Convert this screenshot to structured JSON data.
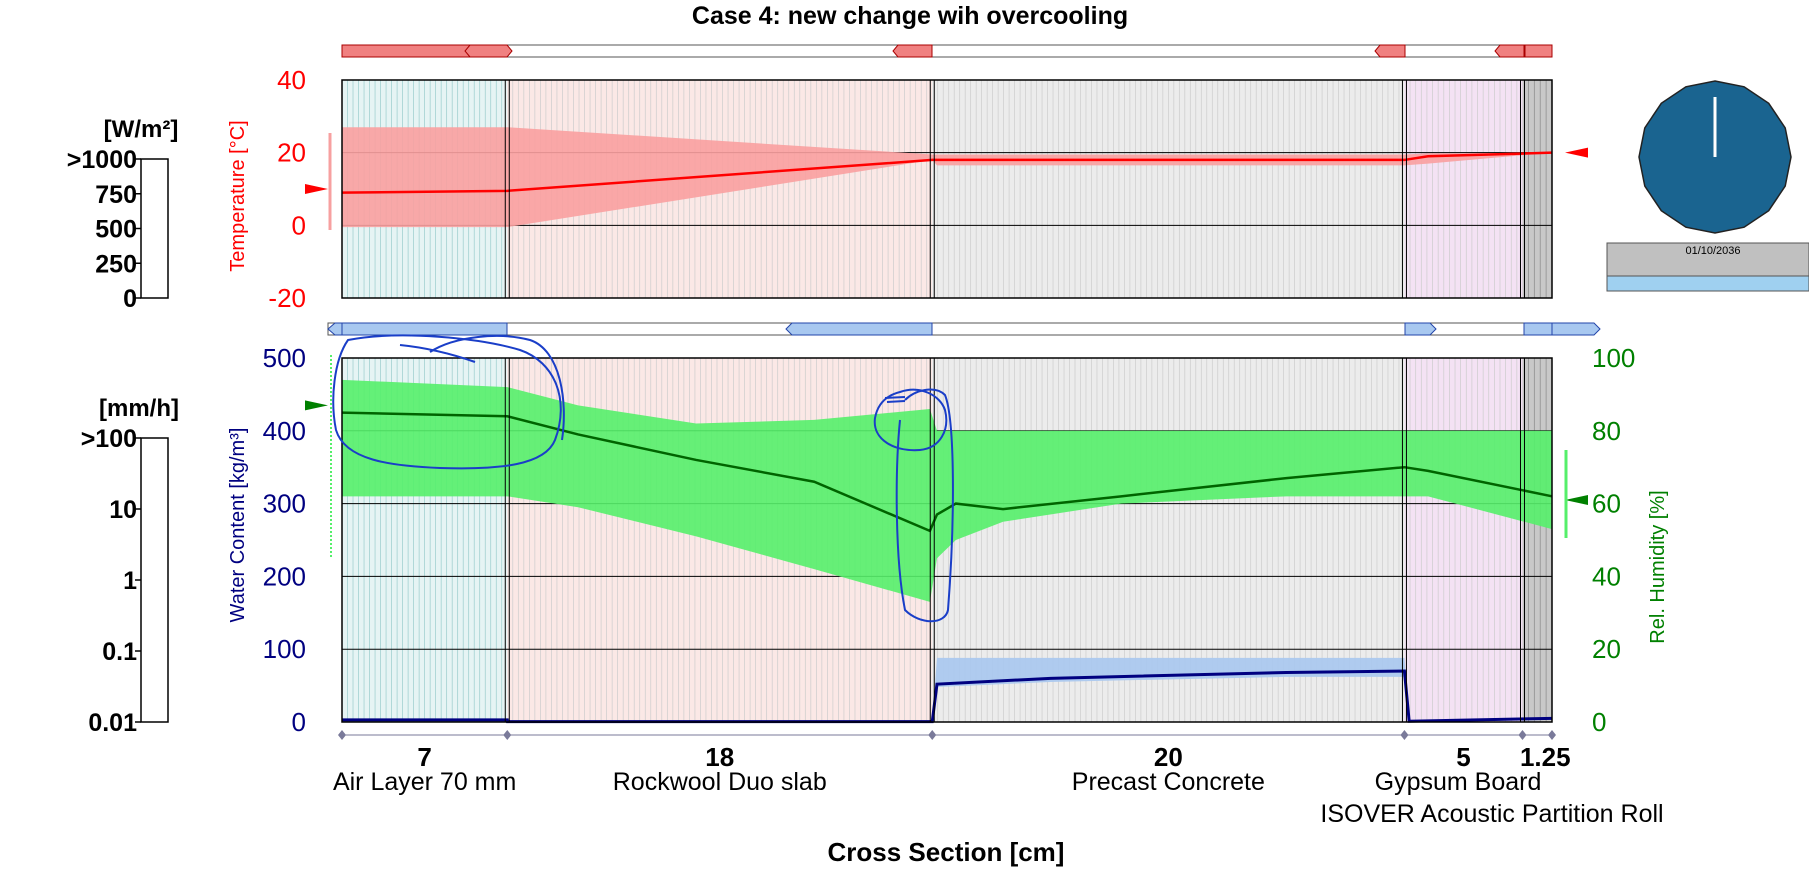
{
  "chart_data": {
    "type": "line",
    "title": "Case 4: new change wih overcooling",
    "xlabel": "Cross Section [cm]",
    "x_range": [
      0,
      51.25
    ],
    "layers": [
      {
        "name": "Air Layer 70 mm",
        "thickness_label": "7",
        "thickness": 7,
        "color": "#e6f4f4"
      },
      {
        "name": "Rockwool Duo slab",
        "thickness_label": "18",
        "thickness": 18,
        "color": "#fbe8e6"
      },
      {
        "name": "Precast Concrete",
        "thickness_label": "20",
        "thickness": 20,
        "color": "#ececec"
      },
      {
        "name": "ISOVER  Acoustic Partition Roll",
        "thickness_label": "5",
        "thickness": 5,
        "color": "#f4e2f4"
      },
      {
        "name": "Gypsum Board",
        "thickness_label": "1.25",
        "thickness": 1.25,
        "color": "#c8c8c8"
      }
    ],
    "temperature": {
      "ylabel": "Temperature [°C]",
      "ylim": [
        -20,
        40
      ],
      "yticks": [
        "40",
        "20",
        "0",
        "-20"
      ],
      "color": "#ff0000",
      "band_color": "#f9a0a0",
      "x": [
        0,
        7,
        25,
        25.2,
        45,
        46,
        51.25
      ],
      "mean": [
        9,
        9.5,
        18,
        18,
        18,
        19,
        20
      ],
      "upper": [
        27,
        27,
        19.5,
        19.5,
        19.5,
        19.8,
        20
      ],
      "lower": [
        -0.5,
        -0.5,
        18,
        16.5,
        16.5,
        17,
        20
      ]
    },
    "relative_humidity": {
      "ylabel": "Rel. Humidity [%]",
      "ylim": [
        0,
        100
      ],
      "yticks": [
        "100",
        "80",
        "60",
        "40",
        "20",
        "0"
      ],
      "color": "#006400",
      "band_color": "#55ef6a",
      "x": [
        0,
        7,
        10,
        15,
        20,
        24.9,
        25.2,
        26,
        28,
        33,
        40,
        45,
        46,
        51.25
      ],
      "mean": [
        85,
        84,
        79,
        72,
        66,
        52.5,
        57,
        60,
        58.5,
        62,
        67,
        70,
        69,
        62
      ],
      "upper": [
        94,
        92,
        87,
        82,
        83,
        86,
        80,
        80,
        80,
        80,
        80,
        80,
        80,
        80
      ],
      "lower": [
        62,
        62,
        59,
        51,
        42,
        33,
        45,
        50,
        55,
        60,
        62,
        62,
        62,
        53
      ]
    },
    "water_content": {
      "ylabel": "Water Content [kg/m³]",
      "ylim": [
        0,
        500
      ],
      "yticks": [
        "500",
        "400",
        "300",
        "200",
        "100",
        "0"
      ],
      "color": "#000080",
      "band_color": "#a8c8f0",
      "x": [
        0,
        7,
        7.01,
        25,
        25.2,
        30,
        40,
        45,
        45.2,
        51.25
      ],
      "mean": [
        3,
        3,
        0.5,
        0.5,
        52,
        60,
        68,
        70,
        1,
        5
      ],
      "upper": [
        4,
        4,
        1,
        1,
        88,
        88,
        88,
        88,
        2,
        6
      ],
      "lower": [
        1,
        1,
        0,
        0,
        48,
        55,
        62,
        62,
        0,
        3
      ]
    },
    "climate_indicator_temperature_left": 10,
    "climate_indicator_temperature_right": 20,
    "climate_indicator_rh_left": 87,
    "climate_indicator_rh_right": 61
  },
  "radiation_scale": {
    "unit": "[W/m²]",
    "ticks": [
      ">1000",
      "750",
      "500",
      "250",
      "0"
    ]
  },
  "rain_scale": {
    "unit": "[mm/h]",
    "ticks": [
      ">100",
      "10",
      "1",
      "0.1",
      "0.01"
    ]
  },
  "clock": {
    "date": "01/10/2036",
    "face_color": "#1a6490"
  }
}
